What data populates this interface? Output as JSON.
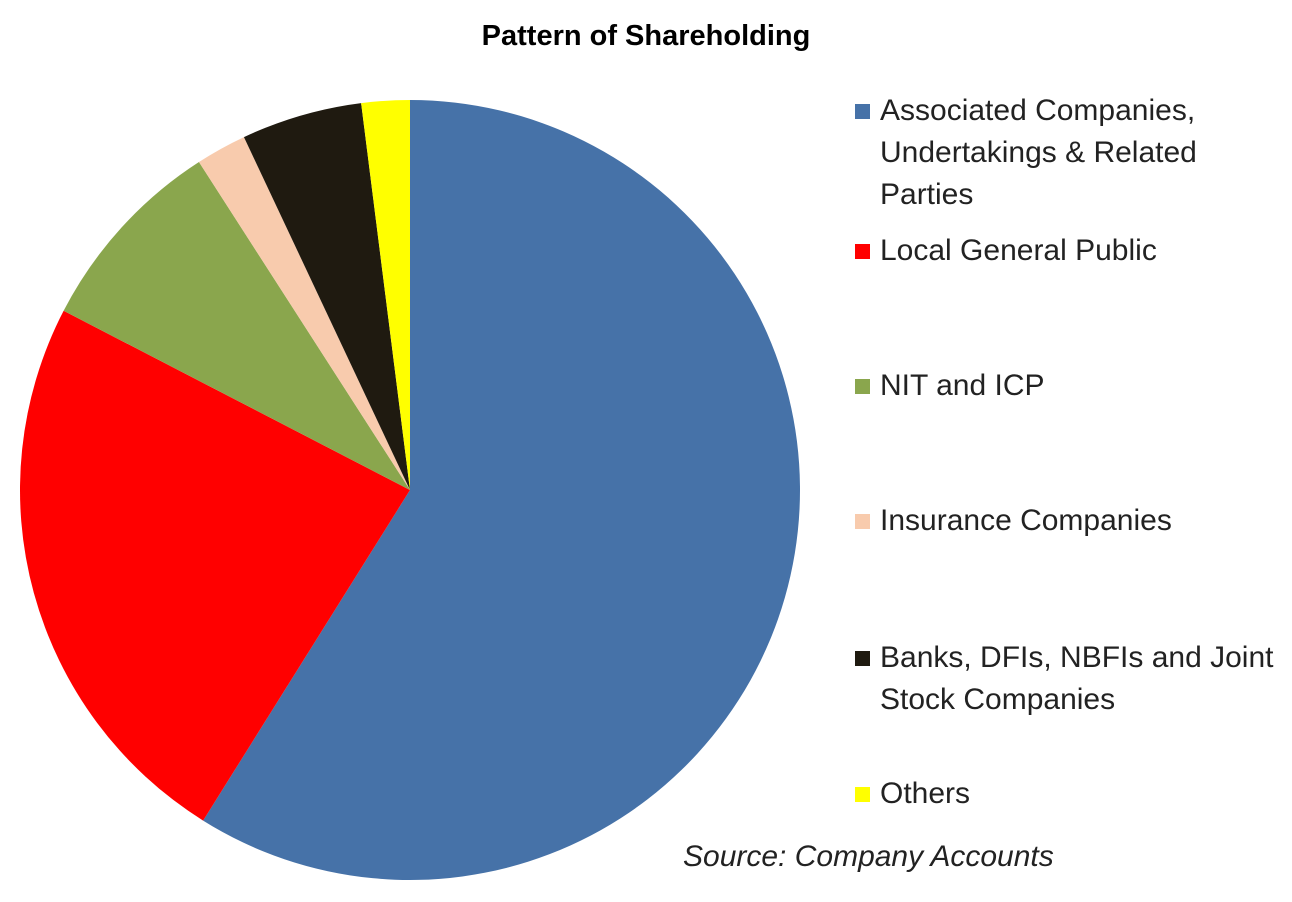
{
  "chart_data": {
    "type": "pie",
    "title": "Pattern of Shareholding",
    "categories": [
      "Associated Companies, Undertakings & Related Parties",
      "Local General Public",
      "NIT and ICP",
      "Insurance Companies",
      "Banks, DFIs, NBFIs and Joint Stock Companies",
      "Others"
    ],
    "values": [
      58.9,
      23.7,
      8.3,
      2.1,
      5.0,
      2.0
    ],
    "colors": [
      "#4672a8",
      "#ff0000",
      "#8aa64d",
      "#f8cbad",
      "#1f1a10",
      "#ffff00"
    ],
    "source": "Source: Company Accounts"
  }
}
